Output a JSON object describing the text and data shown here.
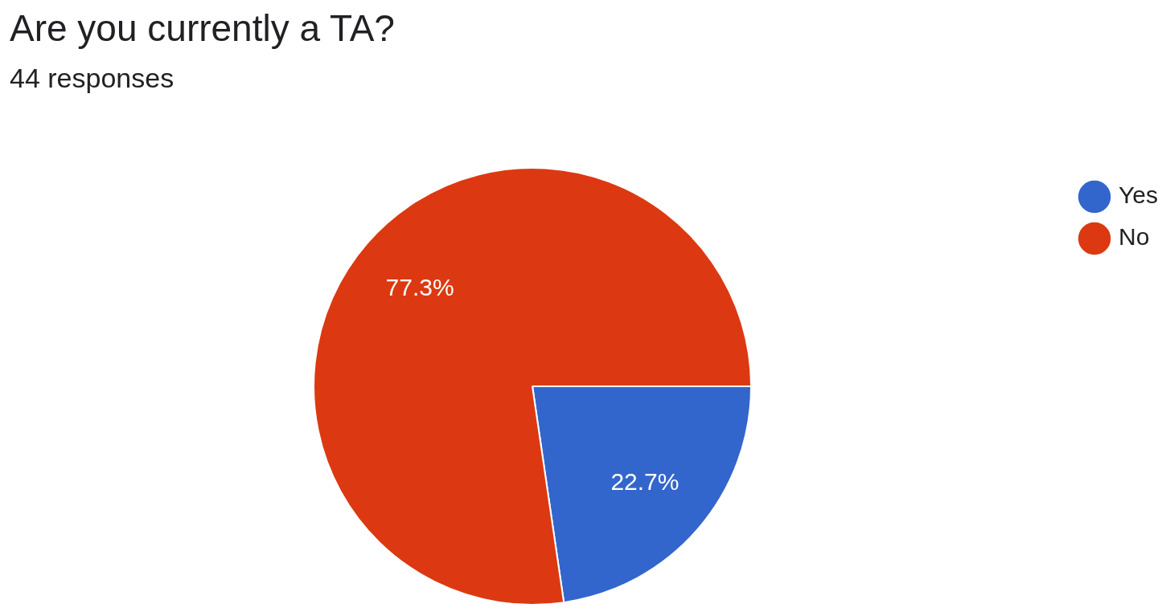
{
  "chart_data": {
    "type": "pie",
    "title": "Are you currently a TA?",
    "subtitle": "44 responses",
    "categories": [
      "Yes",
      "No"
    ],
    "values": [
      22.7,
      77.3
    ],
    "colors": [
      "#3366cc",
      "#dc3912"
    ],
    "value_labels": [
      "22.7%",
      "77.3%"
    ],
    "legend": "top right"
  }
}
